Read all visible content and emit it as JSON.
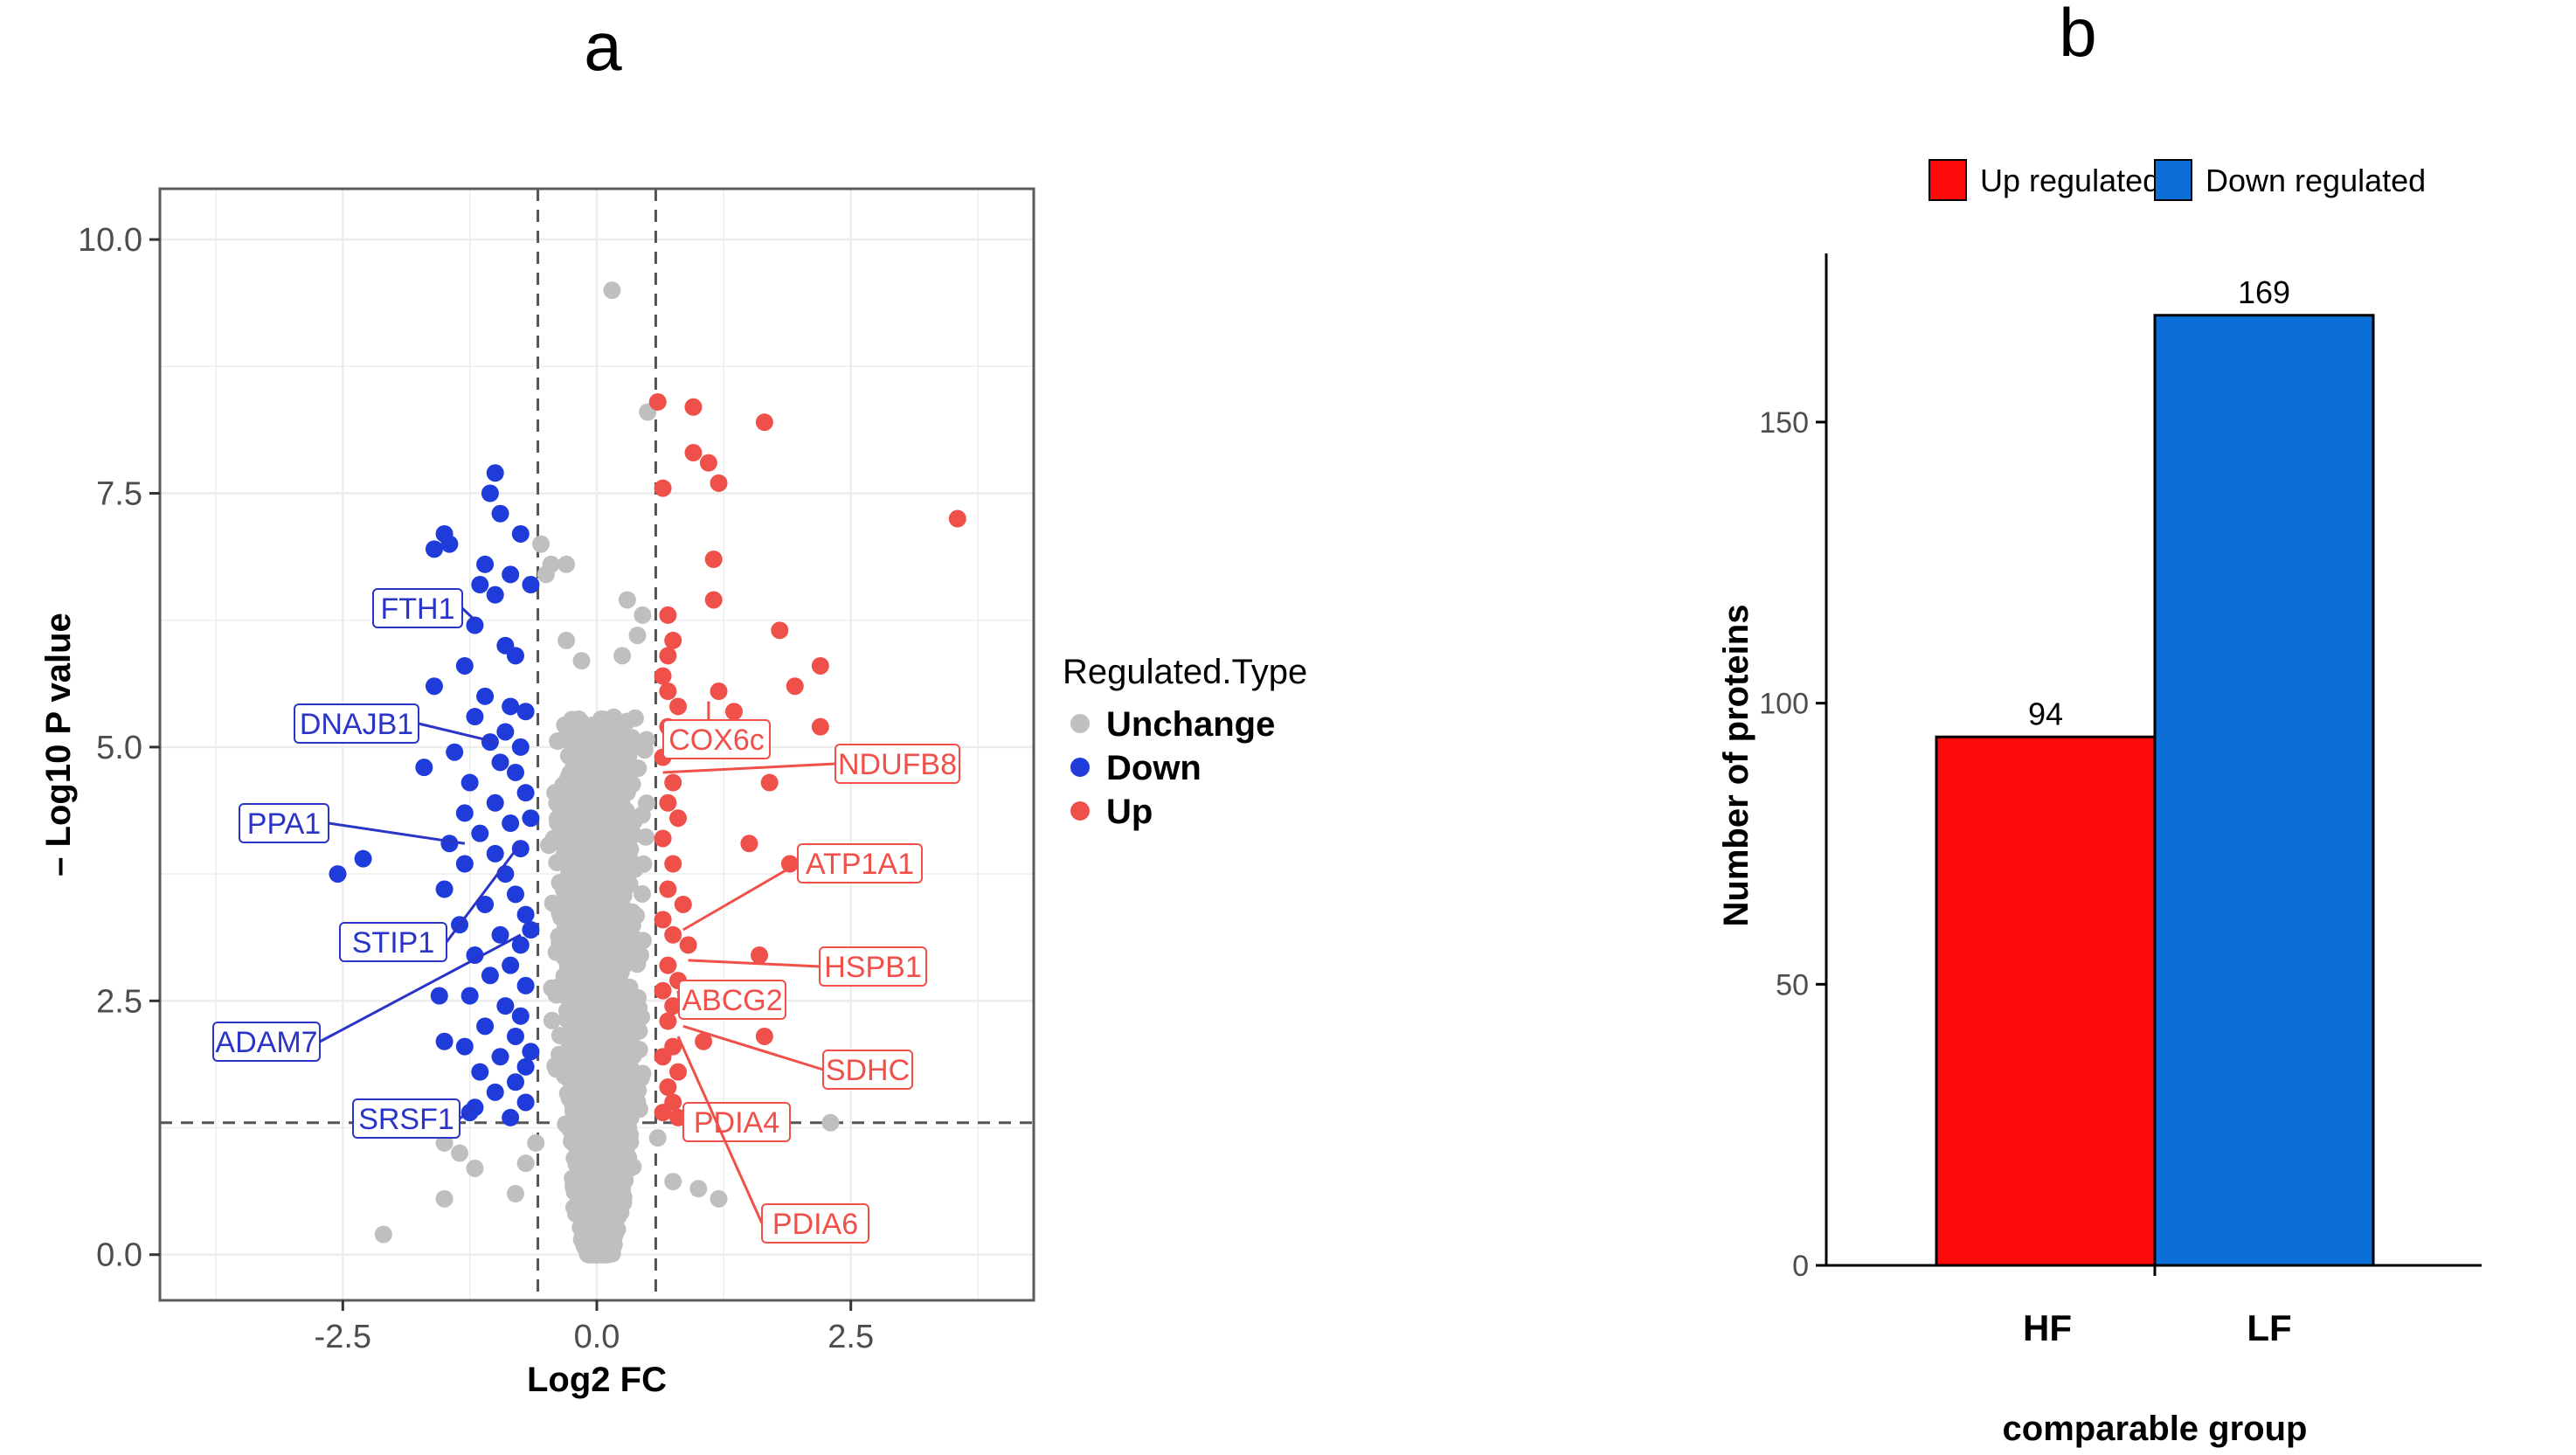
{
  "panels": {
    "a": {
      "letter": "a"
    },
    "b": {
      "letter": "b"
    }
  },
  "colors": {
    "up": "#f0504a",
    "down": "#1f3bd9",
    "unchange": "#bfbfbf",
    "bar_up": "#ff0a0a",
    "bar_down": "#0c6fd8",
    "panel_border": "#5a5a5a",
    "grid": "#ececec"
  },
  "chart_data": [
    {
      "type": "scatter",
      "panel": "a",
      "title": "",
      "xlabel": "Log2 FC",
      "ylabel": "– Log10 P value",
      "xlim": [
        -4.3,
        4.3
      ],
      "ylim": [
        -0.45,
        10.5
      ],
      "x_ticks": [
        -2.5,
        0.0,
        2.5
      ],
      "x_tick_labels": [
        "-2.5",
        "0.0",
        "2.5"
      ],
      "y_ticks": [
        0.0,
        2.5,
        5.0,
        7.5,
        10.0
      ],
      "y_tick_labels": [
        "0.0",
        "2.5",
        "5.0",
        "7.5",
        "10.0"
      ],
      "thresholds": {
        "fc_left": -0.58,
        "fc_right": 0.58,
        "p": 1.3
      },
      "grid": true,
      "legend": {
        "title": "Regulated.Type",
        "position": "right",
        "entries": [
          {
            "name": "Unchange",
            "color": "#bfbfbf"
          },
          {
            "name": "Down",
            "color": "#1f3bd9"
          },
          {
            "name": "Up",
            "color": "#f0504a"
          }
        ]
      },
      "series": [
        {
          "name": "Down",
          "color": "#1f3bd9",
          "points": [
            [
              -1.0,
              7.7
            ],
            [
              -1.05,
              7.5
            ],
            [
              -0.95,
              7.3
            ],
            [
              -1.5,
              7.1
            ],
            [
              -1.45,
              7.0
            ],
            [
              -0.75,
              7.1
            ],
            [
              -1.1,
              6.8
            ],
            [
              -0.85,
              6.7
            ],
            [
              -1.15,
              6.6
            ],
            [
              -1.0,
              6.5
            ],
            [
              -1.2,
              6.2
            ],
            [
              -0.9,
              6.0
            ],
            [
              -0.8,
              5.9
            ],
            [
              -1.3,
              5.8
            ],
            [
              -1.1,
              5.5
            ],
            [
              -1.6,
              5.6
            ],
            [
              -0.85,
              5.4
            ],
            [
              -1.2,
              5.3
            ],
            [
              -0.7,
              5.35
            ],
            [
              -0.9,
              5.15
            ],
            [
              -1.05,
              5.05
            ],
            [
              -0.75,
              5.0
            ],
            [
              -1.4,
              4.95
            ],
            [
              -0.95,
              4.85
            ],
            [
              -0.8,
              4.75
            ],
            [
              -1.25,
              4.65
            ],
            [
              -1.7,
              4.8
            ],
            [
              -0.7,
              4.55
            ],
            [
              -1.0,
              4.45
            ],
            [
              -1.3,
              4.35
            ],
            [
              -0.85,
              4.25
            ],
            [
              -1.15,
              4.15
            ],
            [
              -1.45,
              4.05
            ],
            [
              -0.75,
              4.0
            ],
            [
              -1.0,
              3.95
            ],
            [
              -1.3,
              3.85
            ],
            [
              -0.9,
              3.75
            ],
            [
              -2.3,
              3.9
            ],
            [
              -2.55,
              3.75
            ],
            [
              -1.5,
              3.6
            ],
            [
              -0.8,
              3.55
            ],
            [
              -1.1,
              3.45
            ],
            [
              -0.7,
              3.35
            ],
            [
              -1.35,
              3.25
            ],
            [
              -0.95,
              3.15
            ],
            [
              -0.75,
              3.05
            ],
            [
              -1.2,
              2.95
            ],
            [
              -0.85,
              2.85
            ],
            [
              -1.05,
              2.75
            ],
            [
              -0.7,
              2.65
            ],
            [
              -1.25,
              2.55
            ],
            [
              -0.9,
              2.45
            ],
            [
              -1.55,
              2.55
            ],
            [
              -0.75,
              2.35
            ],
            [
              -1.1,
              2.25
            ],
            [
              -0.8,
              2.15
            ],
            [
              -1.5,
              2.1
            ],
            [
              -1.3,
              2.05
            ],
            [
              -0.95,
              1.95
            ],
            [
              -0.7,
              1.85
            ],
            [
              -1.15,
              1.8
            ],
            [
              -0.8,
              1.7
            ],
            [
              -1.0,
              1.6
            ],
            [
              -0.7,
              1.5
            ],
            [
              -1.2,
              1.45
            ],
            [
              -0.85,
              1.35
            ],
            [
              -1.25,
              1.4
            ],
            [
              -0.65,
              4.3
            ],
            [
              -0.65,
              3.2
            ],
            [
              -0.65,
              2.0
            ],
            [
              -0.65,
              6.6
            ],
            [
              -1.6,
              6.95
            ]
          ]
        },
        {
          "name": "Up",
          "color": "#f0504a",
          "points": [
            [
              0.6,
              8.4
            ],
            [
              0.95,
              8.35
            ],
            [
              1.65,
              8.2
            ],
            [
              0.95,
              7.9
            ],
            [
              1.1,
              7.8
            ],
            [
              1.2,
              7.6
            ],
            [
              0.65,
              7.55
            ],
            [
              3.55,
              7.25
            ],
            [
              1.15,
              6.85
            ],
            [
              1.15,
              6.45
            ],
            [
              0.7,
              6.3
            ],
            [
              0.75,
              6.05
            ],
            [
              1.8,
              6.15
            ],
            [
              0.7,
              5.9
            ],
            [
              0.65,
              5.7
            ],
            [
              2.2,
              5.8
            ],
            [
              1.95,
              5.6
            ],
            [
              0.7,
              5.55
            ],
            [
              1.2,
              5.55
            ],
            [
              0.8,
              5.4
            ],
            [
              1.35,
              5.35
            ],
            [
              2.2,
              5.2
            ],
            [
              0.7,
              5.2
            ],
            [
              0.85,
              5.0
            ],
            [
              0.65,
              4.9
            ],
            [
              0.75,
              4.65
            ],
            [
              1.7,
              4.65
            ],
            [
              0.7,
              4.45
            ],
            [
              0.8,
              4.3
            ],
            [
              1.5,
              4.05
            ],
            [
              0.65,
              4.1
            ],
            [
              0.75,
              3.85
            ],
            [
              1.9,
              3.85
            ],
            [
              0.7,
              3.6
            ],
            [
              0.85,
              3.45
            ],
            [
              0.65,
              3.3
            ],
            [
              0.75,
              3.15
            ],
            [
              0.9,
              3.05
            ],
            [
              1.6,
              2.95
            ],
            [
              0.7,
              2.85
            ],
            [
              0.8,
              2.7
            ],
            [
              0.65,
              2.6
            ],
            [
              1.0,
              2.55
            ],
            [
              0.75,
              2.45
            ],
            [
              0.7,
              2.3
            ],
            [
              1.65,
              2.15
            ],
            [
              0.75,
              2.05
            ],
            [
              0.65,
              1.95
            ],
            [
              0.8,
              1.8
            ],
            [
              0.7,
              1.65
            ],
            [
              0.75,
              1.5
            ],
            [
              0.65,
              1.4
            ],
            [
              0.8,
              1.35
            ],
            [
              1.05,
              2.1
            ]
          ]
        },
        {
          "name": "Unchange",
          "color": "#bfbfbf",
          "points": [
            [
              0.15,
              9.5
            ],
            [
              0.5,
              8.3
            ],
            [
              -0.55,
              7.0
            ],
            [
              -0.45,
              6.8
            ],
            [
              -0.3,
              6.8
            ],
            [
              -0.5,
              6.7
            ],
            [
              0.3,
              6.45
            ],
            [
              0.45,
              6.3
            ],
            [
              0.4,
              6.1
            ],
            [
              -0.3,
              6.05
            ],
            [
              0.25,
              5.9
            ],
            [
              -0.15,
              5.85
            ],
            [
              -1.5,
              1.1
            ],
            [
              -1.35,
              1.0
            ],
            [
              -1.2,
              0.85
            ],
            [
              -1.5,
              0.55
            ],
            [
              -2.1,
              0.2
            ],
            [
              1.0,
              0.65
            ],
            [
              1.2,
              0.55
            ],
            [
              0.75,
              0.72
            ],
            [
              2.3,
              1.3
            ],
            [
              0.6,
              1.15
            ],
            [
              -0.6,
              1.1
            ],
            [
              -0.7,
              0.9
            ],
            [
              -0.8,
              0.6
            ]
          ],
          "cloud": {
            "x_range": [
              -0.58,
              0.58
            ],
            "y_range": [
              0.0,
              5.3
            ],
            "approx_count": 2500
          }
        }
      ],
      "annotations": [
        {
          "label": "FTH1",
          "group": "Down",
          "point": [
            -1.2,
            6.25
          ]
        },
        {
          "label": "DNAJB1",
          "group": "Down",
          "point": [
            -1.0,
            5.05
          ]
        },
        {
          "label": "PPA1",
          "group": "Down",
          "point": [
            -1.3,
            4.05
          ]
        },
        {
          "label": "STIP1",
          "group": "Down",
          "point": [
            -0.75,
            4.05
          ]
        },
        {
          "label": "ADAM7",
          "group": "Down",
          "point": [
            -0.75,
            3.15
          ]
        },
        {
          "label": "SRSF1",
          "group": "Down",
          "point": [
            -1.2,
            1.45
          ]
        },
        {
          "label": "COX6c",
          "group": "Up",
          "point": [
            1.1,
            5.45
          ]
        },
        {
          "label": "NDUFB8",
          "group": "Up",
          "point": [
            0.65,
            4.75
          ]
        },
        {
          "label": "ATP1A1",
          "group": "Up",
          "point": [
            0.85,
            3.2
          ]
        },
        {
          "label": "HSPB1",
          "group": "Up",
          "point": [
            0.9,
            2.9
          ]
        },
        {
          "label": "ABCG2",
          "group": "Up",
          "point": [
            0.8,
            2.6
          ]
        },
        {
          "label": "SDHC",
          "group": "Up",
          "point": [
            0.85,
            2.25
          ]
        },
        {
          "label": "PDIA4",
          "group": "Up",
          "point": [
            0.7,
            1.6
          ]
        },
        {
          "label": "PDIA6",
          "group": "Up",
          "point": [
            0.8,
            2.15
          ]
        }
      ]
    },
    {
      "type": "bar",
      "panel": "b",
      "title": "",
      "xlabel": "comparable group",
      "ylabel": "Number of proteins",
      "categories": [
        "HF",
        "LF"
      ],
      "ylim": [
        0,
        180
      ],
      "y_ticks": [
        0,
        50,
        100,
        150
      ],
      "y_tick_labels": [
        "0",
        "50",
        "100",
        "150"
      ],
      "grid": false,
      "legend": {
        "position": "top"
      },
      "series": [
        {
          "name": "Up regulated",
          "color": "#ff0a0a",
          "category": "HF",
          "value": 94,
          "label": "94"
        },
        {
          "name": "Down regulated",
          "color": "#0c6fd8",
          "category": "LF",
          "value": 169,
          "label": "169"
        }
      ]
    }
  ]
}
